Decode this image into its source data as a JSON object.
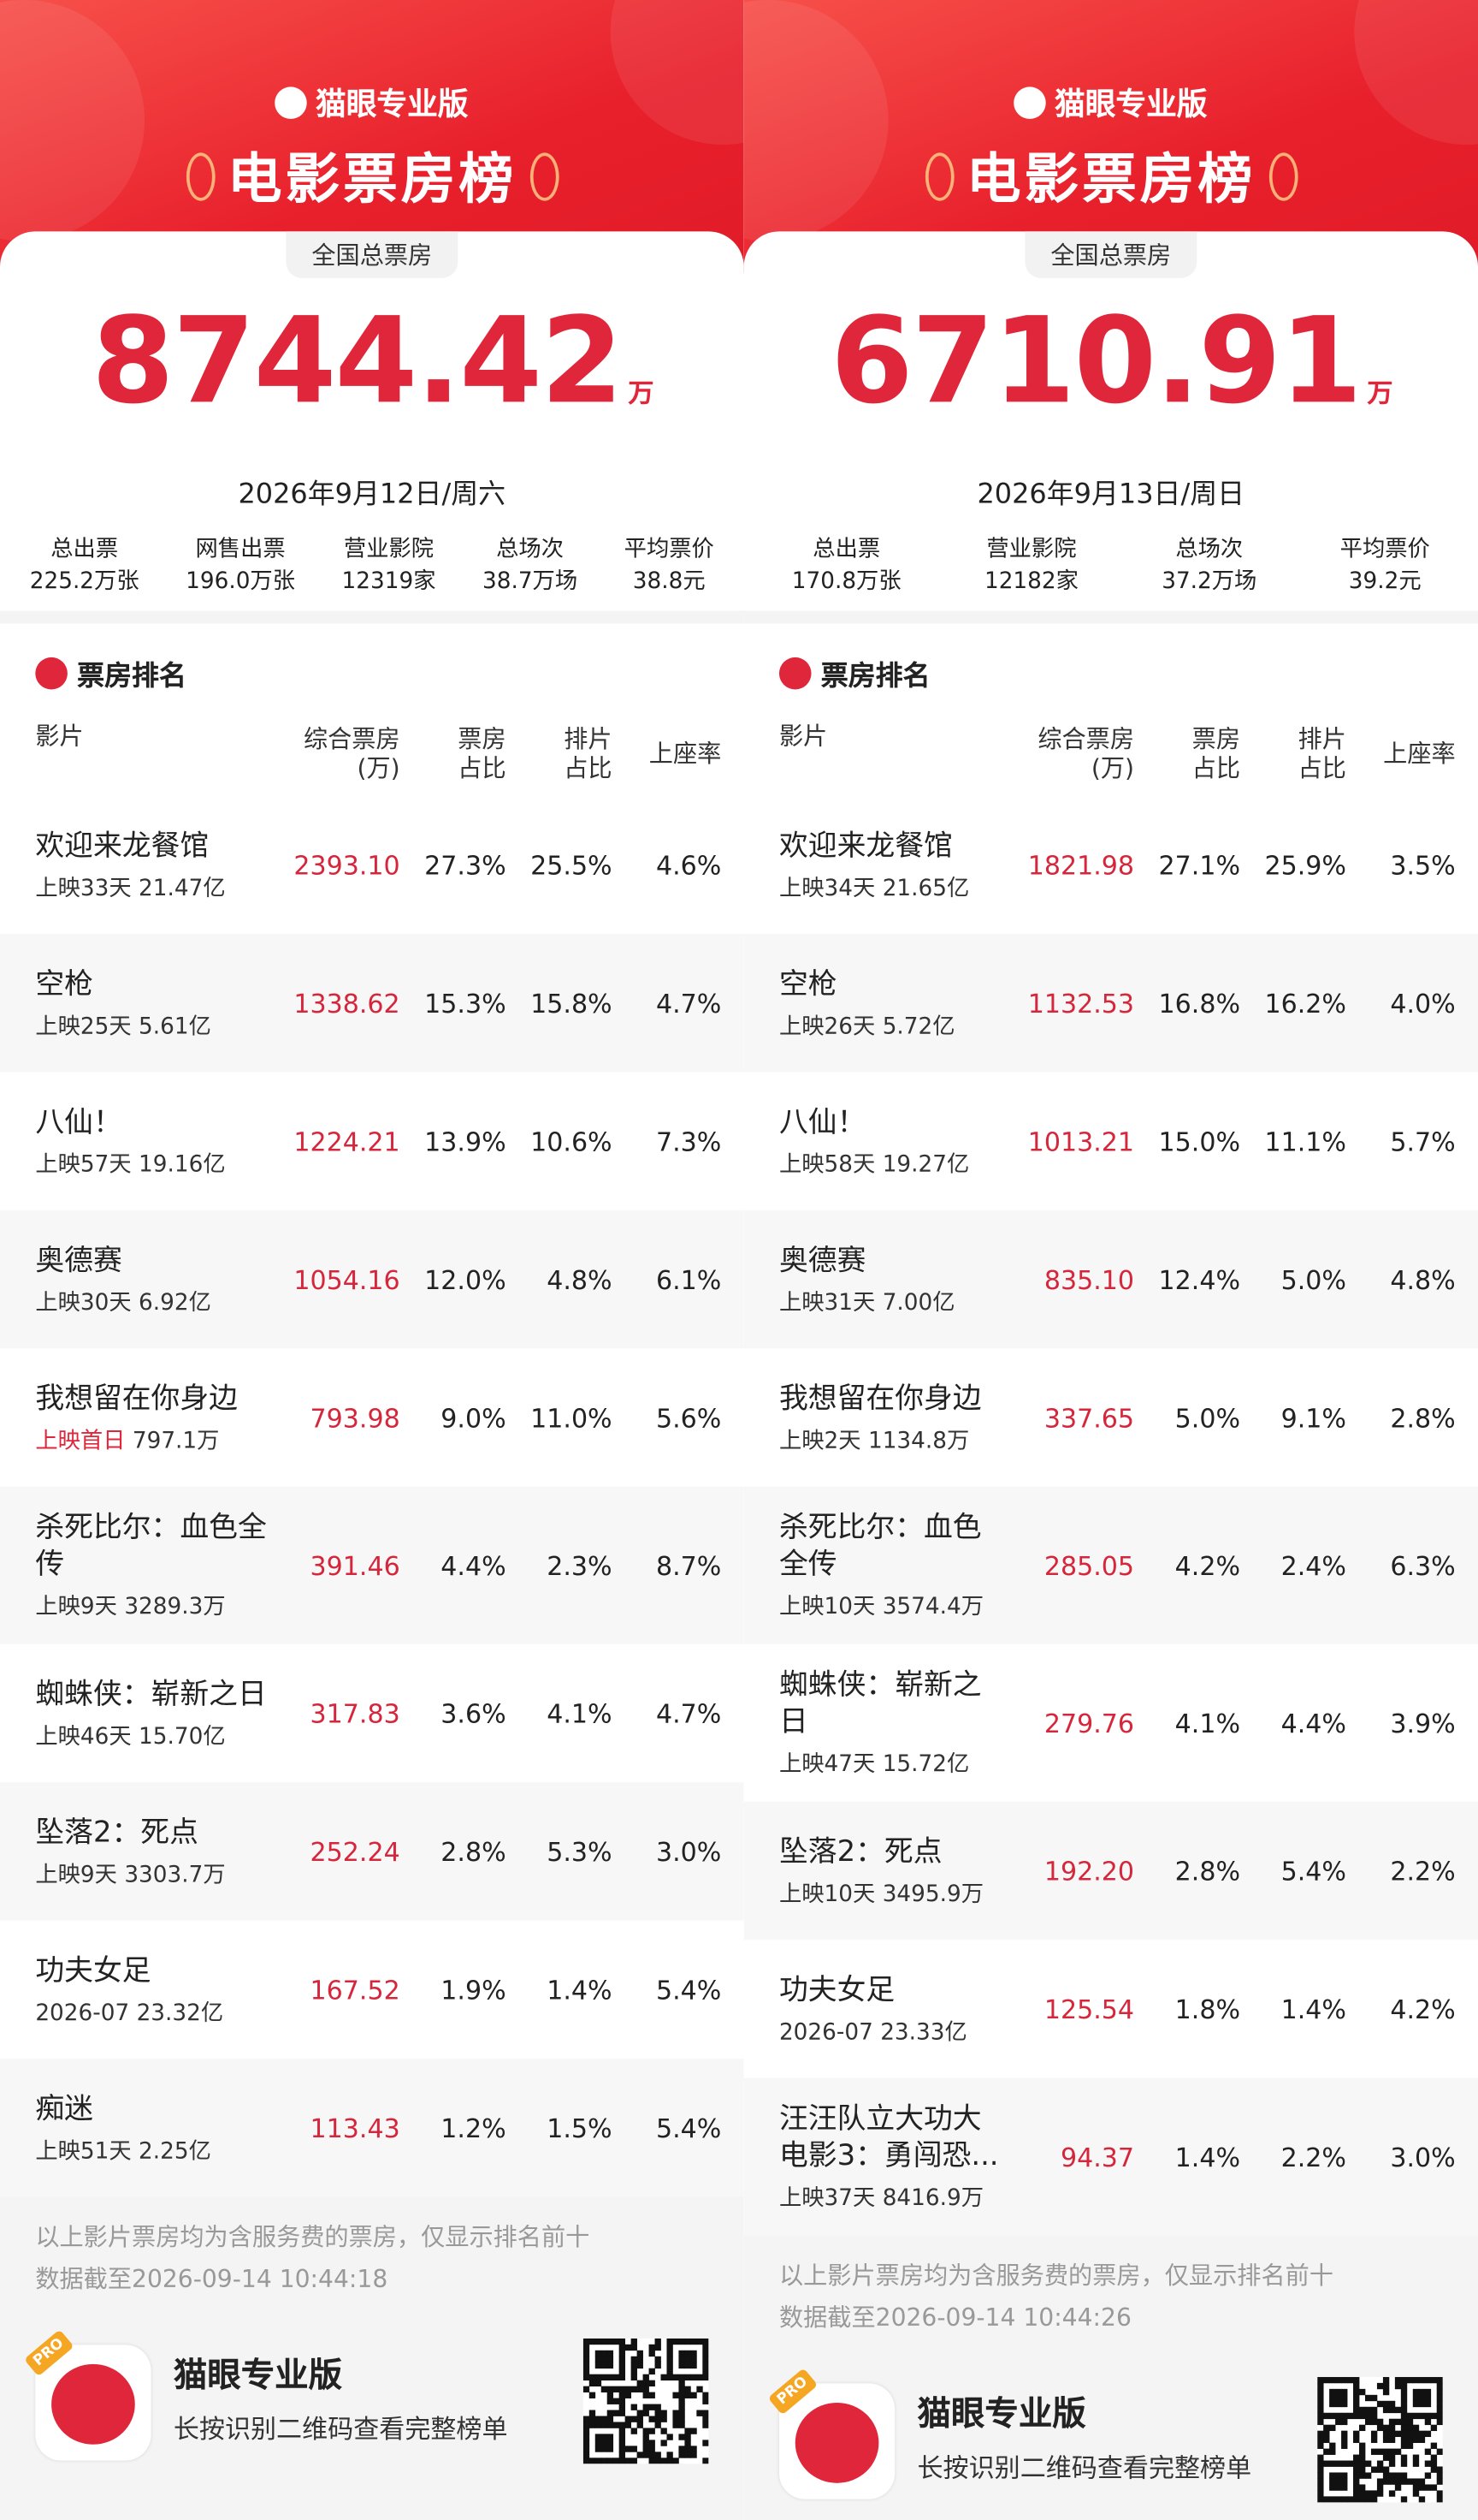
{
  "panels": [
    {
      "brand": "猫眼专业版",
      "title": "电影票房榜",
      "total_label": "全国总票房",
      "total": "8744.42",
      "total_unit": "万",
      "date": "2026年9月12日/周六",
      "stats": [
        {
          "label": "总出票",
          "value": "225.2万张"
        },
        {
          "label": "网售出票",
          "value": "196.0万张"
        },
        {
          "label": "营业影院",
          "value": "12319家"
        },
        {
          "label": "总场次",
          "value": "38.7万场"
        },
        {
          "label": "平均票价",
          "value": "38.8元"
        }
      ],
      "section": "票房排名",
      "headers": [
        "影片",
        "综合票房(万)",
        "票房占比",
        "排片占比",
        "上座率"
      ],
      "rows": [
        {
          "name": "欢迎来龙餐馆",
          "release": "上映33天",
          "gross": "21.47亿",
          "box": "2393.10",
          "share": "27.3%",
          "schedule": "25.5%",
          "occupancy": "4.6%"
        },
        {
          "name": "空枪",
          "release": "上映25天",
          "gross": "5.61亿",
          "box": "1338.62",
          "share": "15.3%",
          "schedule": "15.8%",
          "occupancy": "4.7%"
        },
        {
          "name": "八仙！",
          "release": "上映57天",
          "gross": "19.16亿",
          "box": "1224.21",
          "share": "13.9%",
          "schedule": "10.6%",
          "occupancy": "7.3%"
        },
        {
          "name": "奥德赛",
          "release": "上映30天",
          "gross": "6.92亿",
          "box": "1054.16",
          "share": "12.0%",
          "schedule": "4.8%",
          "occupancy": "6.1%"
        },
        {
          "name": "我想留在你身边",
          "release": "上映首日",
          "release_color": "#e0263b",
          "gross": "797.1万",
          "box": "793.98",
          "share": "9.0%",
          "schedule": "11.0%",
          "occupancy": "5.6%"
        },
        {
          "name": "杀死比尔：血色全传",
          "release": "上映9天",
          "gross": "3289.3万",
          "box": "391.46",
          "share": "4.4%",
          "schedule": "2.3%",
          "occupancy": "8.7%"
        },
        {
          "name": "蜘蛛侠：崭新之日",
          "release": "上映46天",
          "gross": "15.70亿",
          "box": "317.83",
          "share": "3.6%",
          "schedule": "4.1%",
          "occupancy": "4.7%"
        },
        {
          "name": "坠落2：死点",
          "release": "上映9天",
          "gross": "3303.7万",
          "box": "252.24",
          "share": "2.8%",
          "schedule": "5.3%",
          "occupancy": "3.0%"
        },
        {
          "name": "功夫女足",
          "release": "2026-07",
          "gross": "23.32亿",
          "box": "167.52",
          "share": "1.9%",
          "schedule": "1.4%",
          "occupancy": "5.4%"
        },
        {
          "name": "痴迷",
          "release": "上映51天",
          "gross": "2.25亿",
          "box": "113.43",
          "share": "1.2%",
          "schedule": "1.5%",
          "occupancy": "5.4%"
        }
      ],
      "note": "以上影片票房均为含服务费的票房，仅显示排名前十",
      "timestamp": "数据截至2026-09-14 10:44:18",
      "badge": "PRO",
      "app_name": "猫眼专业版",
      "hint": "长按识别二维码查看完整榜单"
    },
    {
      "brand": "猫眼专业版",
      "title": "电影票房榜",
      "total_label": "全国总票房",
      "total": "6710.91",
      "total_unit": "万",
      "date": "2026年9月13日/周日",
      "stats": [
        {
          "label": "总出票",
          "value": "170.8万张"
        },
        {
          "label": "营业影院",
          "value": "12182家"
        },
        {
          "label": "总场次",
          "value": "37.2万场"
        },
        {
          "label": "平均票价",
          "value": "39.2元"
        }
      ],
      "section": "票房排名",
      "headers": [
        "影片",
        "综合票房(万)",
        "票房占比",
        "排片占比",
        "上座率"
      ],
      "rows": [
        {
          "name": "欢迎来龙餐馆",
          "release": "上映34天",
          "gross": "21.65亿",
          "box": "1821.98",
          "share": "27.1%",
          "schedule": "25.9%",
          "occupancy": "3.5%"
        },
        {
          "name": "空枪",
          "release": "上映26天",
          "gross": "5.72亿",
          "box": "1132.53",
          "share": "16.8%",
          "schedule": "16.2%",
          "occupancy": "4.0%"
        },
        {
          "name": "八仙！",
          "release": "上映58天",
          "gross": "19.27亿",
          "box": "1013.21",
          "share": "15.0%",
          "schedule": "11.1%",
          "occupancy": "5.7%"
        },
        {
          "name": "奥德赛",
          "release": "上映31天",
          "gross": "7.00亿",
          "box": "835.10",
          "share": "12.4%",
          "schedule": "5.0%",
          "occupancy": "4.8%"
        },
        {
          "name": "我想留在你身边",
          "release": "上映2天",
          "gross": "1134.8万",
          "box": "337.65",
          "share": "5.0%",
          "schedule": "9.1%",
          "occupancy": "2.8%"
        },
        {
          "name": "杀死比尔：血色全传",
          "release": "上映10天",
          "gross": "3574.4万",
          "box": "285.05",
          "share": "4.2%",
          "schedule": "2.4%",
          "occupancy": "6.3%"
        },
        {
          "name": "蜘蛛侠：崭新之日",
          "release": "上映47天",
          "gross": "15.72亿",
          "box": "279.76",
          "share": "4.1%",
          "schedule": "4.4%",
          "occupancy": "3.9%"
        },
        {
          "name": "坠落2：死点",
          "release": "上映10天",
          "gross": "3495.9万",
          "box": "192.20",
          "share": "2.8%",
          "schedule": "5.4%",
          "occupancy": "2.2%"
        },
        {
          "name": "功夫女足",
          "release": "2026-07",
          "gross": "23.33亿",
          "box": "125.54",
          "share": "1.8%",
          "schedule": "1.4%",
          "occupancy": "4.2%"
        },
        {
          "name": "汪汪队立大功大电影3：勇闯恐...",
          "release": "上映37天",
          "gross": "8416.9万",
          "box": "94.37",
          "share": "1.4%",
          "schedule": "2.2%",
          "occupancy": "3.0%"
        }
      ],
      "note": "以上影片票房均为含服务费的票房，仅显示排名前十",
      "timestamp": "数据截至2026-09-14 10:44:26",
      "badge": "PRO",
      "app_name": "猫眼专业版",
      "hint": "长按识别二维码查看完整榜单"
    }
  ]
}
